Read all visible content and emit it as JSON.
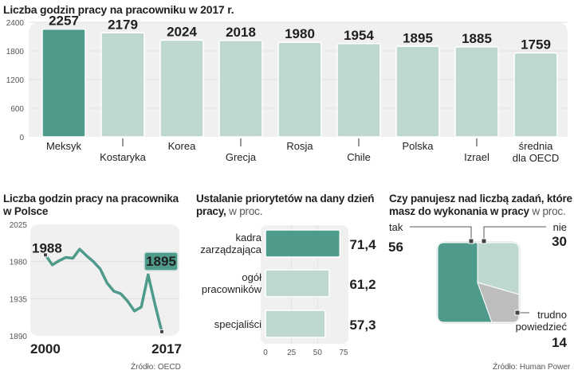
{
  "colors": {
    "accent": "#4e9a8b",
    "light": "#bed8d1",
    "grey": "#bdbdbd",
    "highlight_text": "#a8213a",
    "plot_bg": "#f0f0f0",
    "dark_text": "#1f1f1f"
  },
  "chart_data": [
    {
      "type": "bar",
      "title": "Liczba godzin pracy na pracowniku w 2017 r.",
      "categories": [
        "Meksyk",
        "Kostaryka",
        "Korea",
        "Grecja",
        "Rosja",
        "Chile",
        "Polska",
        "Izrael",
        "średnia dla OECD"
      ],
      "category_lines": [
        [
          "Meksyk"
        ],
        [
          "Kostaryka"
        ],
        [
          "Korea"
        ],
        [
          "Grecja"
        ],
        [
          "Rosja"
        ],
        [
          "Chile"
        ],
        [
          "Polska"
        ],
        [
          "Izrael"
        ],
        [
          "średnia",
          "dla OECD"
        ]
      ],
      "values": [
        2257,
        2179,
        2024,
        2018,
        1980,
        1954,
        1895,
        1885,
        1759
      ],
      "value_labels": [
        "2257",
        "2179",
        "2024",
        "2018",
        "1980",
        "1954",
        "1895",
        "1885",
        "1759"
      ],
      "highlight_bar": "Meksyk",
      "highlight_label": "Polska",
      "yticks": [
        0,
        600,
        1200,
        1800,
        2400
      ],
      "ytick_labels": [
        "0",
        "600",
        "1200",
        "1800",
        "2400"
      ],
      "ylim": [
        0,
        2400
      ],
      "grid": true,
      "xlabel": "",
      "ylabel": ""
    },
    {
      "type": "line",
      "title": "Liczba godzin pracy na pracownika w Polsce",
      "title_lines": [
        "Liczba godzin pracy na pracownika",
        "w Polsce"
      ],
      "x": [
        2000,
        2001,
        2002,
        2003,
        2004,
        2005,
        2006,
        2007,
        2008,
        2009,
        2010,
        2011,
        2012,
        2013,
        2014,
        2015,
        2016,
        2017
      ],
      "values": [
        1988,
        1976,
        1981,
        1985,
        1984,
        1995,
        1987,
        1980,
        1971,
        1954,
        1944,
        1941,
        1932,
        1920,
        1925,
        1964,
        1928,
        1895
      ],
      "ylim": [
        1890,
        2025
      ],
      "yticks": [
        1890,
        1935,
        1980,
        2025
      ],
      "ytick_labels": [
        "1890",
        "1935",
        "1980",
        "2025"
      ],
      "xtick_labels": [
        "2000",
        "2017"
      ],
      "start_label": "1988",
      "end_label": "1895",
      "grid": true
    },
    {
      "type": "bar",
      "orientation": "horizontal",
      "title": "Ustalanie priorytetów na dany dzień pracy,",
      "title_lines": [
        "Ustalanie priorytetów na dany dzień",
        "pracy,"
      ],
      "unit": "w proc.",
      "categories": [
        "kadra zarządzająca",
        "ogół pracowników",
        "specjaliści"
      ],
      "category_lines": [
        [
          "kadra",
          "zarządzająca"
        ],
        [
          "ogół",
          "pracowników"
        ],
        [
          "specjaliści"
        ]
      ],
      "values": [
        71.4,
        61.2,
        57.3
      ],
      "value_labels": [
        "71,4",
        "61,2",
        "57,3"
      ],
      "highlight_bar": "kadra zarządzająca",
      "xticks": [
        0,
        25,
        50,
        75
      ],
      "xtick_labels": [
        "0",
        "25",
        "50",
        "75"
      ],
      "xlim": [
        0,
        75
      ],
      "grid": true
    },
    {
      "type": "pie",
      "title": "Czy panujesz nad liczbą zadań, które masz do wykonania  w pracy",
      "title_lines": [
        "Czy panujesz nad liczbą zadań, które",
        "masz do wykonania  w pracy"
      ],
      "unit": "w proc.",
      "labels": [
        "tak",
        "nie",
        "trudno powiedzieć"
      ],
      "label_lines": [
        [
          "tak"
        ],
        [
          "nie"
        ],
        [
          "trudno",
          "powiedzieć"
        ]
      ],
      "values": [
        56,
        30,
        14
      ],
      "value_labels": [
        "56",
        "30",
        "14"
      ]
    }
  ],
  "sources": {
    "left": "Źródło: OECD",
    "right": "Źródło: Human Power"
  }
}
